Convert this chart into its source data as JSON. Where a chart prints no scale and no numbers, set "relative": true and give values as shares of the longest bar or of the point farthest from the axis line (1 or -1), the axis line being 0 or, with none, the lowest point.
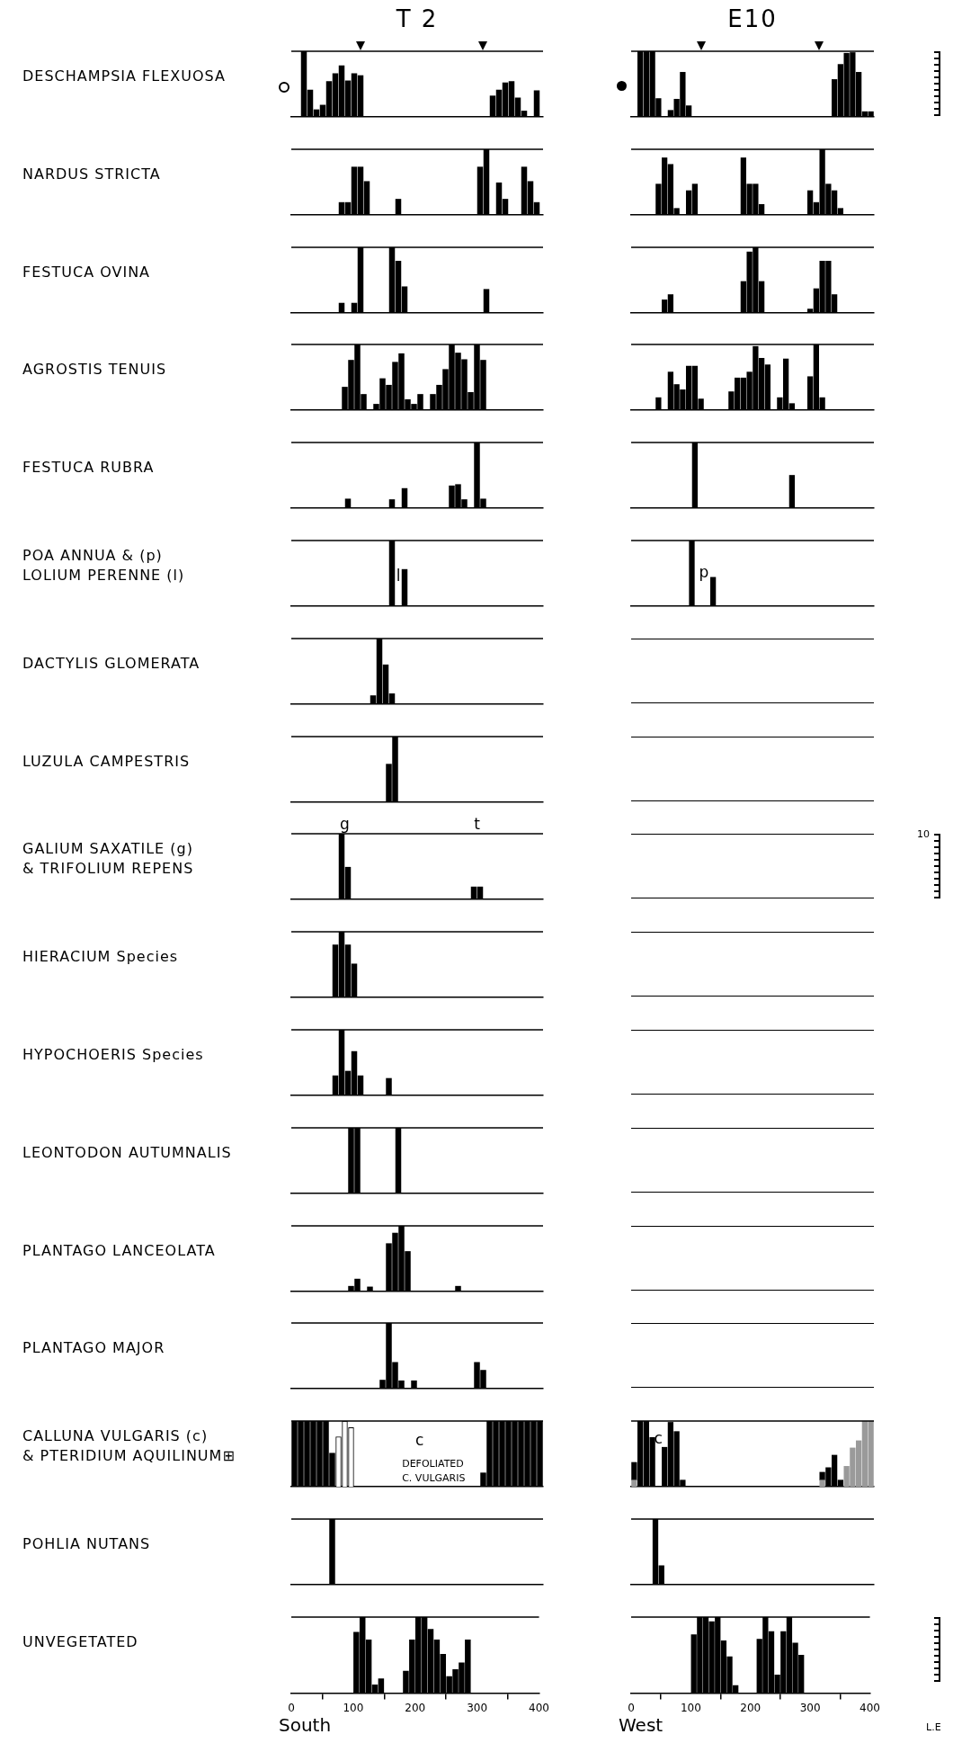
{
  "chart_data": [
    {
      "type": "bar",
      "title": "T 2",
      "ylabel": "DESCHAMPSIA FLEXUOSA",
      "x": [
        20,
        30,
        40,
        50,
        60,
        70,
        80,
        90,
        100,
        110,
        320,
        330,
        340,
        350,
        360,
        370,
        390
      ],
      "values": [
        1,
        0.41,
        0.11,
        0.18,
        0.54,
        0.66,
        0.78,
        0.55,
        0.66,
        0.63,
        0.32,
        0.41,
        0.52,
        0.54,
        0.29,
        0.09,
        0.4
      ],
      "color": "#000000",
      "relative": true,
      "xlim": [
        0,
        400
      ],
      "tick_labels": false
    },
    {
      "type": "bar",
      "title": "E10",
      "x": [
        15,
        25,
        35,
        45,
        65,
        75,
        85,
        95,
        335,
        345,
        355,
        365,
        375,
        385,
        395
      ],
      "values": [
        1,
        1,
        1,
        0.28,
        0.1,
        0.27,
        0.68,
        0.17,
        0.57,
        0.8,
        0.97,
        0.98,
        0.68,
        0.08,
        0.08
      ],
      "color": "#000000",
      "relative": true,
      "xlim": [
        0,
        400
      ],
      "tick_labels": false
    },
    {
      "type": "bar",
      "ylabel": "NARDUS STRICTA",
      "x": [
        80,
        90,
        100,
        110,
        120,
        170,
        300,
        310,
        330,
        340,
        370,
        380,
        390
      ],
      "values": [
        0.19,
        0.19,
        0.73,
        0.73,
        0.51,
        0.24,
        0.73,
        1,
        0.49,
        0.24,
        0.73,
        0.51,
        0.19
      ],
      "color": "#000000",
      "relative": true,
      "xlim": [
        0,
        400
      ],
      "tick_labels": false
    },
    {
      "type": "bar",
      "x": [
        45,
        55,
        65,
        75,
        95,
        105,
        185,
        195,
        205,
        215,
        295,
        305,
        315,
        325,
        335,
        345
      ],
      "values": [
        0.47,
        0.87,
        0.77,
        0.1,
        0.37,
        0.47,
        0.87,
        0.47,
        0.47,
        0.16,
        0.37,
        0.19,
        1,
        0.47,
        0.37,
        0.1
      ],
      "color": "#000000",
      "relative": true,
      "xlim": [
        0,
        400
      ],
      "tick_labels": false
    },
    {
      "type": "bar",
      "ylabel": "FESTUCA OVINA",
      "x": [
        80,
        100,
        110,
        160,
        170,
        180,
        310
      ],
      "values": [
        0.15,
        0.15,
        1,
        1,
        0.79,
        0.4,
        0.36
      ],
      "color": "#000000",
      "relative": true,
      "xlim": [
        0,
        400
      ],
      "tick_labels": false
    },
    {
      "type": "bar",
      "x": [
        55,
        65,
        185,
        195,
        205,
        215,
        295,
        305,
        315,
        325,
        335
      ],
      "values": [
        0.2,
        0.28,
        0.48,
        0.93,
        1,
        0.48,
        0.06,
        0.37,
        0.79,
        0.79,
        0.28
      ],
      "color": "#000000",
      "relative": true,
      "xlim": [
        0,
        400
      ],
      "tick_labels": false
    },
    {
      "type": "bar",
      "ylabel": "AGROSTIS TENUIS",
      "x": [
        85,
        95,
        105,
        115,
        135,
        145,
        155,
        165,
        175,
        185,
        195,
        205,
        225,
        235,
        245,
        255,
        265,
        275,
        285,
        295,
        305
      ],
      "values": [
        0.35,
        0.76,
        1,
        0.24,
        0.09,
        0.48,
        0.38,
        0.73,
        0.86,
        0.16,
        0.09,
        0.24,
        0.24,
        0.38,
        0.62,
        1,
        0.87,
        0.77,
        0.27,
        1,
        0.76
      ],
      "color": "#000000",
      "relative": true,
      "xlim": [
        0,
        400
      ],
      "tick_labels": false
    },
    {
      "type": "bar",
      "x": [
        45,
        65,
        75,
        85,
        95,
        105,
        115,
        165,
        175,
        185,
        195,
        205,
        215,
        225,
        245,
        255,
        265,
        295,
        305,
        315
      ],
      "values": [
        0.19,
        0.58,
        0.39,
        0.31,
        0.67,
        0.67,
        0.17,
        0.28,
        0.49,
        0.49,
        0.58,
        0.97,
        0.79,
        0.69,
        0.19,
        0.78,
        0.1,
        0.51,
        1,
        0.19
      ],
      "color": "#000000",
      "relative": true,
      "xlim": [
        0,
        400
      ],
      "tick_labels": false
    },
    {
      "type": "bar",
      "ylabel": "FESTUCA RUBRA",
      "x": [
        90,
        160,
        180,
        255,
        265,
        275,
        295,
        305
      ],
      "values": [
        0.14,
        0.13,
        0.3,
        0.34,
        0.36,
        0.13,
        1,
        0.14
      ],
      "color": "#000000",
      "relative": true,
      "xlim": [
        0,
        400
      ],
      "tick_labels": false
    },
    {
      "type": "bar",
      "x": [
        105,
        265
      ],
      "values": [
        1,
        0.5
      ],
      "color": "#000000",
      "relative": true,
      "xlim": [
        0,
        400
      ],
      "tick_labels": false
    },
    {
      "type": "bar",
      "ylabel": "POA ANNUA & (p)\nLOLIUM PERENNE (l)",
      "x": [
        160,
        180
      ],
      "values": [
        1,
        0.56
      ],
      "color": "#000000",
      "relative": true,
      "xlim": [
        0,
        400
      ],
      "tick_labels": false,
      "annotations": [
        "l"
      ]
    },
    {
      "type": "bar",
      "x": [
        100,
        135
      ],
      "values": [
        1,
        0.44
      ],
      "color": "#000000",
      "relative": true,
      "xlim": [
        0,
        400
      ],
      "tick_labels": false,
      "annotations": [
        "p"
      ]
    },
    {
      "type": "bar",
      "ylabel": "DACTYLIS GLOMERATA",
      "x": [
        130,
        140,
        150,
        160
      ],
      "values": [
        0.13,
        1,
        0.6,
        0.16
      ],
      "color": "#000000",
      "relative": true,
      "xlim": [
        0,
        400
      ],
      "tick_labels": false
    },
    {
      "type": "other"
    },
    {
      "type": "bar",
      "ylabel": "LUZULA CAMPESTRIS",
      "x": [
        155,
        165
      ],
      "values": [
        0.58,
        1
      ],
      "color": "#000000",
      "relative": true,
      "xlim": [
        0,
        400
      ],
      "tick_labels": false
    },
    {
      "type": "other"
    },
    {
      "type": "bar",
      "ylabel": "GALIUM SAXATILE (g)\n& TRIFOLIUM REPENS",
      "x": [
        80,
        90,
        290,
        300
      ],
      "values": [
        1,
        0.49,
        0.19,
        0.19
      ],
      "color": "#000000",
      "relative": true,
      "xlim": [
        0,
        400
      ],
      "tick_labels": false,
      "annotations": [
        "g",
        "t"
      ]
    },
    {
      "type": "other",
      "annotations": [
        "10"
      ]
    },
    {
      "type": "bar",
      "ylabel": "HIERACIUM Species",
      "x": [
        70,
        80,
        90,
        100
      ],
      "values": [
        0.8,
        1,
        0.8,
        0.51
      ],
      "color": "#000000",
      "relative": true,
      "xlim": [
        0,
        400
      ],
      "tick_labels": false
    },
    {
      "type": "other"
    },
    {
      "type": "bar",
      "ylabel": "HYPOCHOERIS Species",
      "x": [
        70,
        80,
        90,
        100,
        110,
        155
      ],
      "values": [
        0.3,
        1,
        0.37,
        0.67,
        0.3,
        0.26
      ],
      "color": "#000000",
      "relative": true,
      "xlim": [
        0,
        400
      ],
      "tick_labels": false
    },
    {
      "type": "other"
    },
    {
      "type": "bar",
      "ylabel": "LEONTODON AUTUMNALIS",
      "x": [
        95,
        105,
        170
      ],
      "values": [
        1,
        1,
        1
      ],
      "color": "#000000",
      "relative": true,
      "xlim": [
        0,
        400
      ],
      "tick_labels": false
    },
    {
      "type": "other"
    },
    {
      "type": "bar",
      "ylabel": "PLANTAGO LANCEOLATA",
      "x": [
        95,
        105,
        125,
        155,
        165,
        175,
        185,
        265
      ],
      "values": [
        0.08,
        0.19,
        0.07,
        0.73,
        0.89,
        1,
        0.61,
        0.08
      ],
      "color": "#000000",
      "relative": true,
      "xlim": [
        0,
        400
      ],
      "tick_labels": false
    },
    {
      "type": "other"
    },
    {
      "type": "bar",
      "ylabel": "PLANTAGO MAJOR",
      "x": [
        145,
        155,
        165,
        175,
        195,
        295,
        305
      ],
      "values": [
        0.13,
        1,
        0.4,
        0.12,
        0.12,
        0.4,
        0.28
      ],
      "color": "#000000",
      "relative": true,
      "xlim": [
        0,
        400
      ],
      "tick_labels": false
    },
    {
      "type": "other"
    },
    {
      "type": "bar",
      "ylabel": "CALLUNA VULGARIS (c)\n& PTERIDIUM AQUILINUM⊞",
      "series": [
        {
          "color": "#000000",
          "x": [
            5,
            15,
            25,
            35,
            45,
            55,
            65,
            305,
            315,
            325,
            335,
            345,
            355,
            365,
            375,
            385,
            395
          ],
          "values": [
            1,
            1,
            1,
            1,
            1,
            1,
            0.51,
            0.21,
            1,
            1,
            1,
            1,
            1,
            1,
            1,
            1,
            1
          ]
        },
        {
          "color": "#ffffff",
          "x": [
            75,
            85,
            95
          ],
          "values": [
            0.76,
            1,
            0.9
          ]
        }
      ],
      "relative": true,
      "xlim": [
        0,
        400
      ],
      "tick_labels": false,
      "annotations": [
        "c",
        "DEFOLIATED\nC. VULGARIS"
      ]
    },
    {
      "type": "bar",
      "stacked": true,
      "x": [
        5,
        15,
        25,
        35,
        55,
        65,
        75,
        85,
        315,
        325,
        335,
        345,
        355,
        365,
        375,
        385,
        395
      ],
      "series": [
        {
          "color": "#9a9a9a",
          "values": [
            0.1,
            null,
            null,
            null,
            null,
            null,
            null,
            null,
            0.1,
            null,
            null,
            null,
            0.31,
            0.59,
            0.7,
            1,
            1
          ]
        },
        {
          "color": "#000000",
          "values": [
            0.27,
            1,
            1,
            0.75,
            0.6,
            0.98,
            0.84,
            0.1,
            0.12,
            0.29,
            0.48,
            0.1,
            null,
            null,
            null,
            null,
            null
          ]
        }
      ],
      "relative": true,
      "xlim": [
        0,
        400
      ],
      "tick_labels": false,
      "annotations": [
        "c"
      ]
    },
    {
      "type": "bar",
      "ylabel": "POHLIA NUTANS",
      "x": [
        65
      ],
      "values": [
        1
      ],
      "color": "#000000",
      "relative": true,
      "xlim": [
        0,
        400
      ],
      "tick_labels": false
    },
    {
      "type": "bar",
      "x": [
        40,
        50
      ],
      "values": [
        1,
        0.29
      ],
      "color": "#000000",
      "relative": true,
      "xlim": [
        0,
        400
      ],
      "tick_labels": false
    },
    {
      "type": "bar",
      "ylabel": "UNVEGETATED",
      "xlabel": "South",
      "x": [
        105,
        115,
        125,
        135,
        145,
        185,
        195,
        205,
        215,
        225,
        235,
        245,
        255,
        265,
        275,
        285
      ],
      "values": [
        0.8,
        1,
        0.7,
        0.11,
        0.19,
        0.29,
        0.7,
        1,
        1,
        0.84,
        0.7,
        0.51,
        0.22,
        0.31,
        0.4,
        0.7
      ],
      "color": "#000000",
      "relative": true,
      "xlim": [
        0,
        400
      ],
      "xticks": [
        0,
        100,
        200,
        300,
        400
      ],
      "tick_labels": "x"
    },
    {
      "type": "bar",
      "xlabel": "West",
      "x": [
        105,
        115,
        125,
        135,
        145,
        155,
        165,
        175,
        215,
        225,
        235,
        245,
        255,
        265,
        275,
        285
      ],
      "values": [
        0.77,
        1,
        1,
        0.94,
        1,
        0.69,
        0.48,
        0.1,
        0.71,
        1,
        0.81,
        0.24,
        0.81,
        1,
        0.66,
        0.5
      ],
      "color": "#000000",
      "relative": true,
      "xlim": [
        0,
        400
      ],
      "xticks": [
        0,
        100,
        200,
        300,
        400
      ],
      "tick_labels": "x",
      "annotations": [
        "L.E"
      ]
    }
  ]
}
